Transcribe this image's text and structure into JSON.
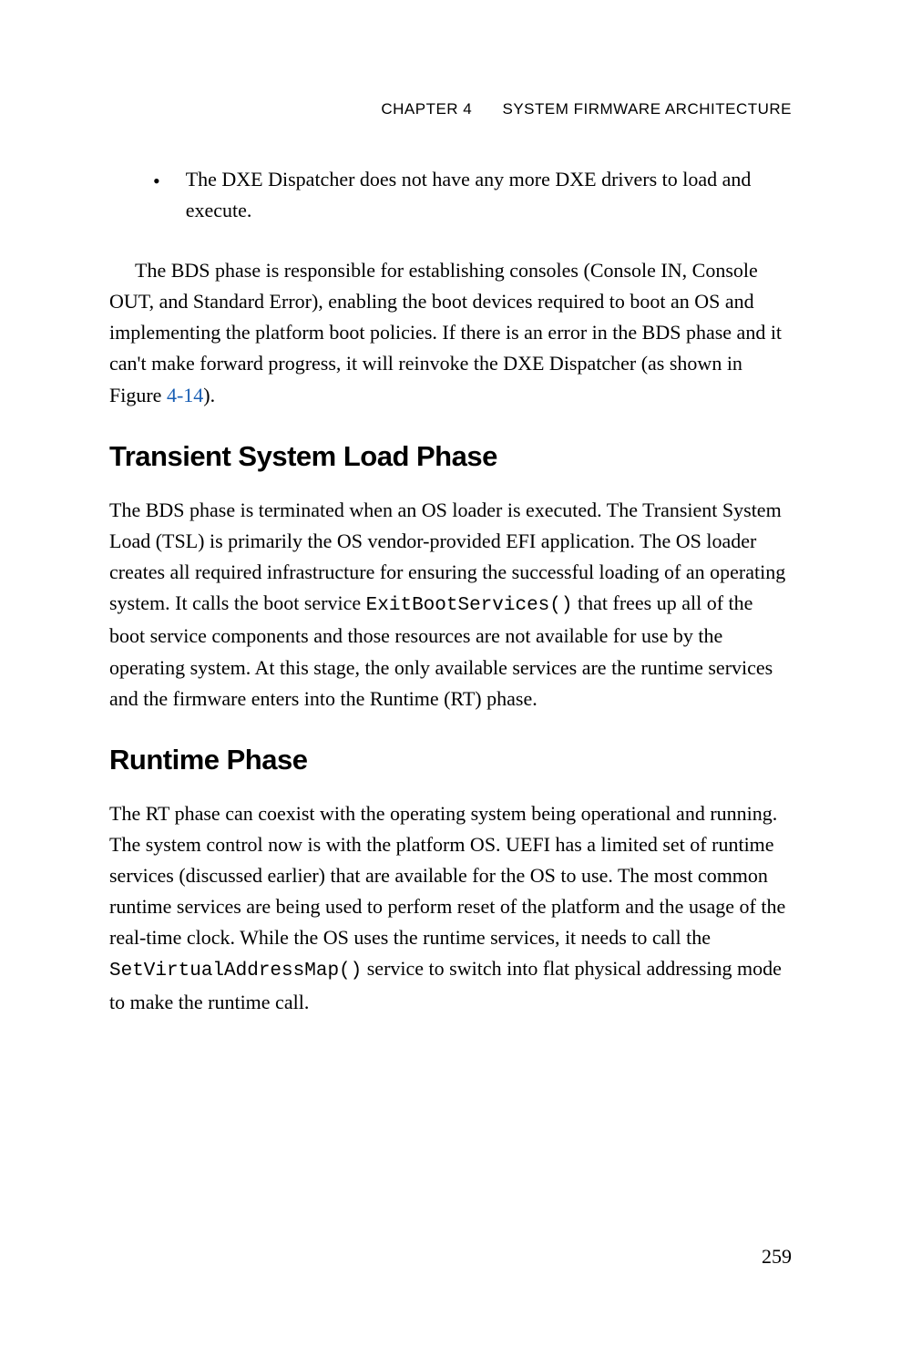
{
  "header": {
    "chapter_label": "CHAPTER 4",
    "chapter_title": "SYSTEM FIRMWARE ARCHITECTURE"
  },
  "bullet": {
    "text": "The DXE Dispatcher does not have any more DXE drivers to load and execute."
  },
  "para1": {
    "pre": "The BDS phase is responsible for establishing consoles (Console IN, Console OUT, and Standard Error), enabling the boot devices required to boot an OS and implementing the platform boot policies. If there is an error in the BDS phase and it can't make forward progress, it will reinvoke the DXE Dispatcher (as shown in Figure ",
    "link": "4-14",
    "post": ")."
  },
  "section1": {
    "heading": "Transient System Load Phase",
    "para_pre": "The BDS phase is terminated when an OS loader is executed. The Transient System Load (TSL) is primarily the OS vendor-provided EFI application. The OS loader creates all required infrastructure for ensuring the successful loading of an operating system. It calls the boot service ",
    "code": "ExitBootServices()",
    "para_post": " that frees up all of the boot service components and those resources are not available for use by the operating system. At this stage, the only available services are the runtime services and the firmware enters into the Runtime (RT) phase."
  },
  "section2": {
    "heading": "Runtime Phase",
    "para_pre": "The RT phase can coexist with the operating system being operational and running. The system control now is with the platform OS. UEFI has a limited set of runtime services (discussed earlier) that are available for the OS to use. The most common runtime services are being used to perform reset of the platform and the usage of the real-time clock. While the OS uses the runtime services, it needs to call the ",
    "code": "SetVirtualAddressMap()",
    "para_post": " service to switch into flat physical addressing mode to make the runtime call."
  },
  "page_number": "259",
  "colors": {
    "text": "#000000",
    "link": "#1a5fb4",
    "background": "#ffffff"
  },
  "typography": {
    "body_font": "Georgia serif",
    "heading_font": "Arial sans-serif",
    "code_font": "Courier New monospace",
    "body_fontsize": 22,
    "heading_fontsize": 31,
    "header_fontsize": 17,
    "line_height": 1.55
  }
}
